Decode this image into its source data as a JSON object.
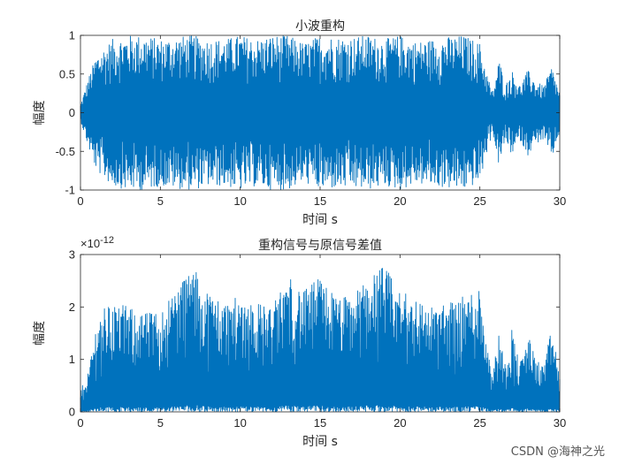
{
  "chart_data": [
    {
      "type": "line",
      "title": "小波重构",
      "xlabel": "时间 s",
      "ylabel": "幅度",
      "xlim": [
        0,
        30
      ],
      "ylim": [
        -1,
        1
      ],
      "xticks": [
        0,
        5,
        10,
        15,
        20,
        25,
        30
      ],
      "yticks": [
        -1,
        -0.5,
        0,
        0.5,
        1
      ],
      "ytick_labels": [
        "-1",
        "-0.5",
        "0",
        "0.5",
        "1"
      ],
      "series_color": "#0072BD",
      "envelope": {
        "t": [
          0,
          0.5,
          1,
          1.5,
          2,
          3,
          4,
          5,
          6,
          7,
          8,
          9,
          10,
          11,
          12,
          13,
          14,
          15,
          16,
          17,
          18,
          19,
          20,
          21,
          22,
          23,
          24,
          25,
          25.4,
          25.8,
          26.2,
          26.6,
          27,
          27.5,
          28,
          28.5,
          29,
          29.5,
          30
        ],
        "amplitude": [
          0.1,
          0.45,
          0.75,
          0.85,
          0.95,
          1.0,
          1.0,
          0.95,
          0.98,
          1.0,
          0.95,
          0.95,
          1.0,
          0.95,
          1.0,
          1.0,
          0.9,
          1.0,
          0.98,
          0.98,
          1.0,
          0.95,
          1.0,
          0.92,
          0.95,
          0.98,
          1.0,
          0.9,
          0.55,
          0.25,
          0.7,
          0.35,
          0.55,
          0.35,
          0.55,
          0.4,
          0.35,
          0.6,
          0.25
        ]
      }
    },
    {
      "type": "line",
      "title": "重构信号与原信号差值",
      "xlabel": "时间 s",
      "ylabel": "幅度",
      "xlim": [
        0,
        30
      ],
      "ylim": [
        0,
        3e-12
      ],
      "xticks": [
        0,
        5,
        10,
        15,
        20,
        25,
        30
      ],
      "yticks": [
        0,
        1,
        2,
        3
      ],
      "ytick_labels": [
        "0",
        "1",
        "2",
        "3"
      ],
      "exponent_label": "×10",
      "exponent_power": "-12",
      "series_color": "#0072BD",
      "envelope": {
        "t": [
          0,
          0.5,
          1,
          1.5,
          2,
          3,
          4,
          5,
          6,
          7,
          8,
          9,
          10,
          11,
          12,
          13,
          14,
          15,
          16,
          17,
          18,
          19,
          20,
          21,
          22,
          23,
          24,
          25,
          25.4,
          25.8,
          26.2,
          26.6,
          27,
          27.5,
          28,
          28.5,
          29,
          29.5,
          30
        ],
        "amplitude": [
          0.4,
          0.8,
          1.7,
          2.0,
          2.1,
          2.0,
          1.9,
          1.9,
          2.4,
          2.8,
          2.3,
          2.1,
          2.2,
          2.1,
          2.0,
          2.6,
          2.3,
          2.6,
          2.2,
          2.2,
          2.6,
          2.8,
          2.3,
          2.2,
          2.0,
          2.1,
          2.2,
          2.4,
          1.5,
          0.8,
          1.5,
          0.9,
          1.6,
          0.9,
          1.5,
          1.0,
          0.9,
          1.6,
          0.7
        ]
      }
    }
  ],
  "watermark": "CSDN @海神之光"
}
